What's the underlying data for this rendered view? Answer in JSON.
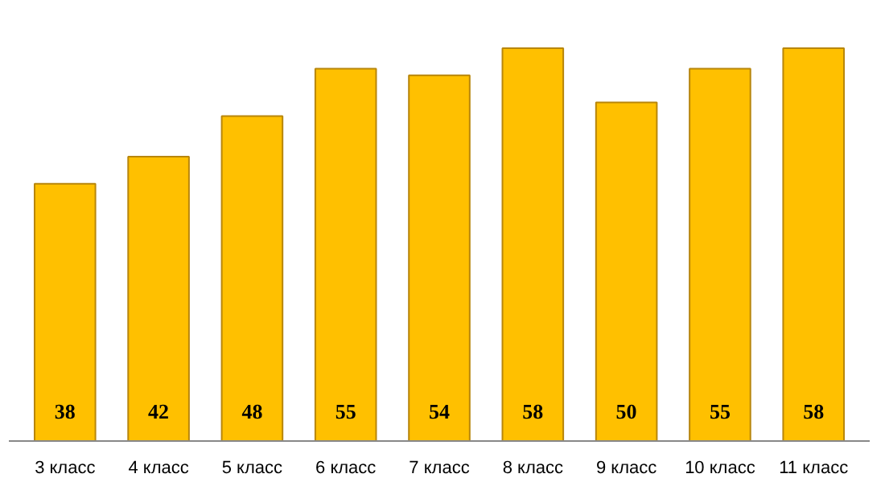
{
  "chart_data": {
    "type": "bar",
    "categories": [
      "3 класс",
      "4 класс",
      "5 класс",
      "6 класс",
      "7 класс",
      "8 класс",
      "9 класс",
      "10 класс",
      "11 класс"
    ],
    "values": [
      38,
      42,
      48,
      55,
      54,
      58,
      50,
      55,
      58
    ],
    "color": "#ffc000",
    "data_labels": true
  }
}
